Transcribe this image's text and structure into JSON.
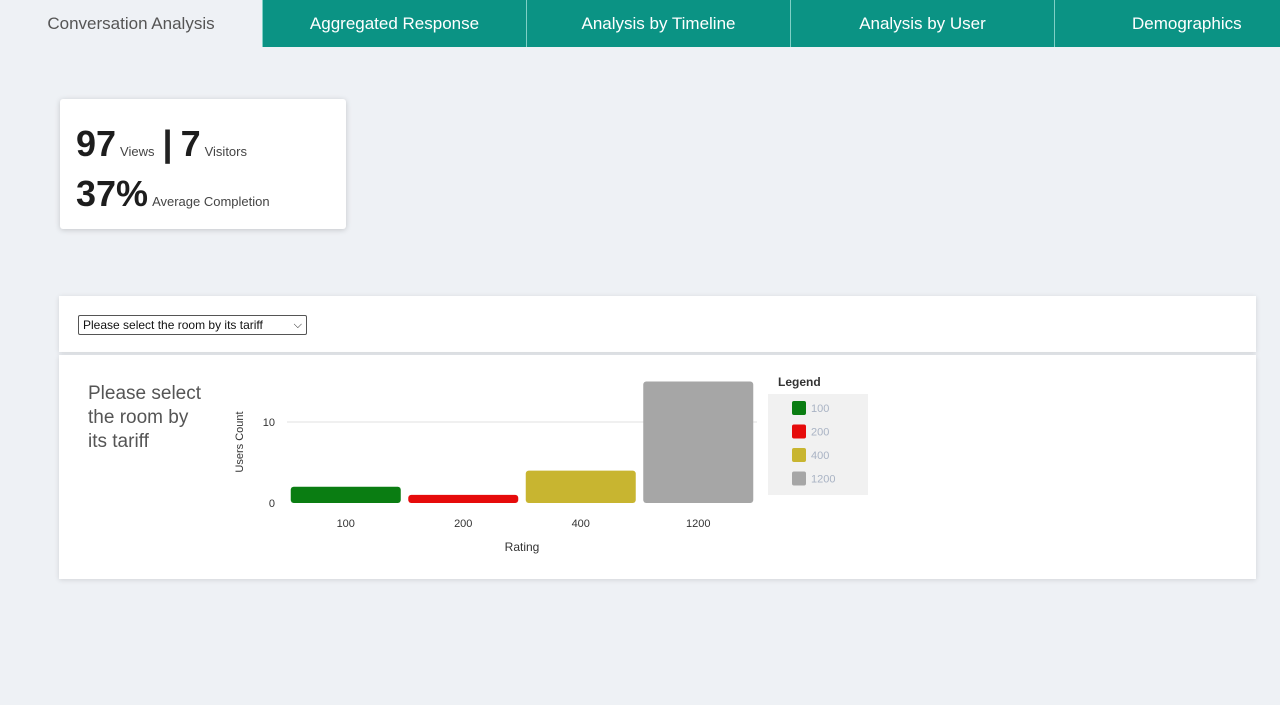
{
  "tabs": [
    {
      "label": "Conversation Analysis",
      "active": true
    },
    {
      "label": "Aggregated Response",
      "active": false
    },
    {
      "label": "Analysis by Timeline",
      "active": false
    },
    {
      "label": "Analysis by User",
      "active": false
    },
    {
      "label": "Demographics",
      "active": false
    }
  ],
  "stats": {
    "views": "97",
    "views_label": "Views",
    "separator": "|",
    "visitors": "7",
    "visitors_label": "Visitors",
    "completion": "37%",
    "completion_label": "Average Completion"
  },
  "filter": {
    "selected": "Please select the room by its tariff"
  },
  "prompt_text": "Please select the room by its tariff",
  "chart_data": {
    "type": "bar",
    "categories": [
      "100",
      "200",
      "400",
      "1200"
    ],
    "values": [
      2,
      1,
      4,
      15
    ],
    "colors": [
      "#0a7d12",
      "#e60b0b",
      "#c8b530",
      "#a6a6a6"
    ],
    "xlabel": "Rating",
    "ylabel": "Users Count",
    "yticks": [
      0,
      10
    ],
    "ylim": [
      0,
      15
    ],
    "grid": true,
    "legend": {
      "title": "Legend",
      "placement": "right",
      "entries": [
        "100",
        "200",
        "400",
        "1200"
      ]
    }
  }
}
